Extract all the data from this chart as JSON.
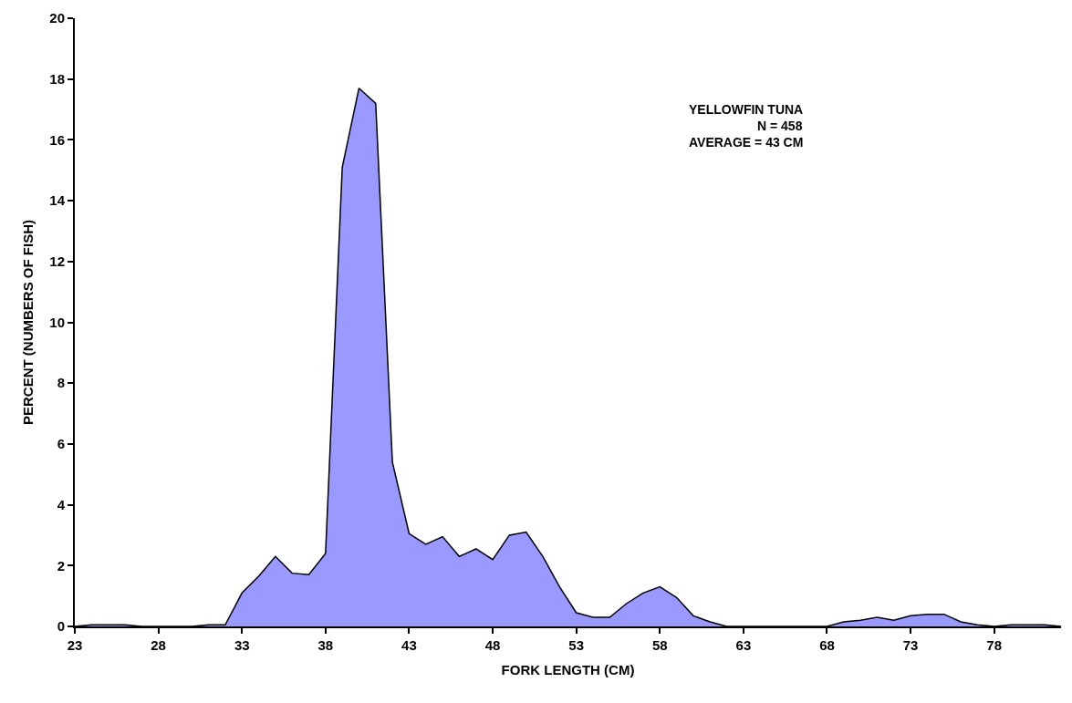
{
  "chart_data": {
    "type": "area",
    "xlabel": "FORK LENGTH (CM)",
    "ylabel": "PERCENT (NUMBERS OF FISH)",
    "annotations": [
      "YELLOWFIN TUNA",
      "N = 458",
      "AVERAGE = 43 CM"
    ],
    "x": [
      23,
      24,
      25,
      26,
      27,
      28,
      29,
      30,
      31,
      32,
      33,
      34,
      35,
      36,
      37,
      38,
      39,
      40,
      41,
      42,
      43,
      44,
      45,
      46,
      47,
      48,
      49,
      50,
      51,
      52,
      53,
      54,
      55,
      56,
      57,
      58,
      59,
      60,
      61,
      62,
      63,
      64,
      65,
      66,
      67,
      68,
      69,
      70,
      71,
      72,
      73,
      74,
      75,
      76,
      77,
      78,
      79,
      80,
      81,
      82
    ],
    "series": [
      {
        "color": "#9999ff",
        "values": [
          0,
          0.05,
          0.05,
          0.05,
          0,
          0,
          0,
          0,
          0.05,
          0.05,
          1.1,
          1.65,
          2.3,
          1.75,
          1.7,
          2.4,
          15.1,
          17.7,
          17.2,
          5.4,
          3.05,
          2.7,
          2.95,
          2.3,
          2.55,
          2.2,
          3.0,
          3.1,
          2.3,
          1.3,
          0.45,
          0.3,
          0.3,
          0.75,
          1.1,
          1.3,
          0.95,
          0.35,
          0.15,
          0,
          0,
          0,
          0,
          0,
          0,
          0,
          0.15,
          0.2,
          0.3,
          0.2,
          0.35,
          0.4,
          0.4,
          0.15,
          0.05,
          0,
          0.05,
          0.05,
          0.05,
          0
        ]
      }
    ],
    "xlim": [
      23,
      82
    ],
    "xticks": [
      23,
      28,
      33,
      38,
      43,
      48,
      53,
      58,
      63,
      68,
      73,
      78
    ],
    "ylim": [
      0,
      20
    ],
    "yticks": [
      0,
      2,
      4,
      6,
      8,
      10,
      12,
      14,
      16,
      18,
      20
    ],
    "grid": false,
    "marker": "none",
    "line_style": "solid"
  }
}
